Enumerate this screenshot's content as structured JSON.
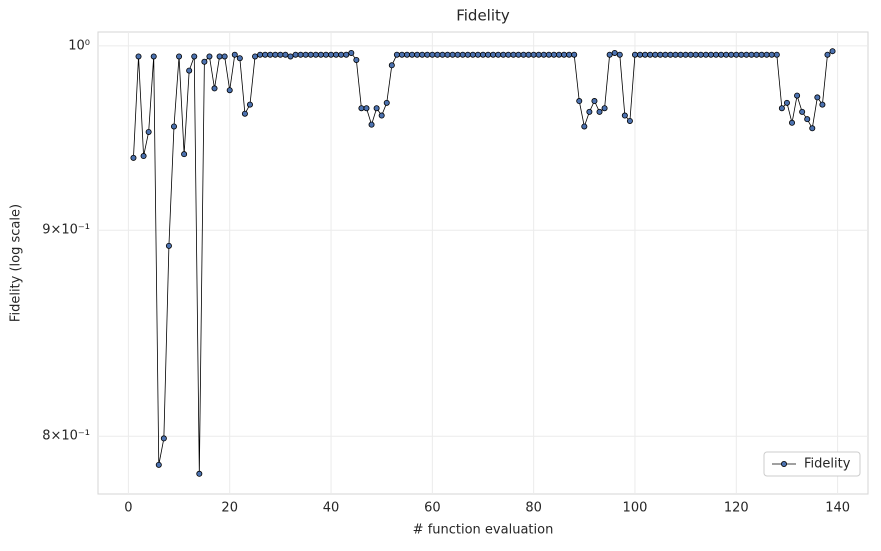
{
  "chart_data": {
    "type": "line",
    "title": "Fidelity",
    "x_label": "# function evaluation",
    "y_label": "Fidelity (log scale)",
    "log_y": true,
    "grid": true,
    "legend_position": "lower right",
    "xlim": [
      -6,
      146
    ],
    "xticks": [
      0,
      20,
      40,
      60,
      80,
      100,
      120,
      140
    ],
    "ylim": [
      0.774,
      1.008
    ],
    "yticks": [
      {
        "value": 0.8,
        "label": "8×10⁻¹"
      },
      {
        "value": 0.9,
        "label": "9×10⁻¹"
      },
      {
        "value": 1,
        "label": "10⁰"
      }
    ],
    "x": [
      1,
      2,
      3,
      4,
      5,
      6,
      7,
      8,
      9,
      10,
      11,
      12,
      13,
      14,
      15,
      16,
      17,
      18,
      19,
      20,
      21,
      22,
      23,
      24,
      25,
      26,
      27,
      28,
      29,
      30,
      31,
      32,
      33,
      34,
      35,
      36,
      37,
      38,
      39,
      40,
      41,
      42,
      43,
      44,
      45,
      46,
      47,
      48,
      49,
      50,
      51,
      52,
      53,
      54,
      55,
      56,
      57,
      58,
      59,
      60,
      61,
      62,
      63,
      64,
      65,
      66,
      67,
      68,
      69,
      70,
      71,
      72,
      73,
      74,
      75,
      76,
      77,
      78,
      79,
      80,
      81,
      82,
      83,
      84,
      85,
      86,
      87,
      88,
      89,
      90,
      91,
      92,
      93,
      94,
      95,
      96,
      97,
      98,
      99,
      100,
      101,
      102,
      103,
      104,
      105,
      106,
      107,
      108,
      109,
      110,
      111,
      112,
      113,
      114,
      115,
      116,
      117,
      118,
      119,
      120,
      121,
      122,
      123,
      124,
      125,
      126,
      127,
      128,
      129,
      130,
      131,
      132,
      133,
      134,
      135,
      136,
      137,
      138,
      139
    ],
    "series": [
      {
        "name": "Fidelity",
        "color": "#4c72b0",
        "values": [
          0.938,
          0.994,
          0.939,
          0.952,
          0.994,
          0.787,
          0.799,
          0.892,
          0.955,
          0.994,
          0.94,
          0.986,
          0.994,
          0.783,
          0.991,
          0.994,
          0.976,
          0.994,
          0.994,
          0.975,
          0.995,
          0.993,
          0.962,
          0.967,
          0.994,
          0.995,
          0.995,
          0.995,
          0.995,
          0.995,
          0.995,
          0.994,
          0.995,
          0.995,
          0.995,
          0.995,
          0.995,
          0.995,
          0.995,
          0.995,
          0.995,
          0.995,
          0.995,
          0.996,
          0.992,
          0.965,
          0.965,
          0.956,
          0.965,
          0.961,
          0.968,
          0.989,
          0.995,
          0.995,
          0.995,
          0.995,
          0.995,
          0.995,
          0.995,
          0.995,
          0.995,
          0.995,
          0.995,
          0.995,
          0.995,
          0.995,
          0.995,
          0.995,
          0.995,
          0.995,
          0.995,
          0.995,
          0.995,
          0.995,
          0.995,
          0.995,
          0.995,
          0.995,
          0.995,
          0.995,
          0.995,
          0.995,
          0.995,
          0.995,
          0.995,
          0.995,
          0.995,
          0.995,
          0.969,
          0.955,
          0.963,
          0.969,
          0.963,
          0.965,
          0.995,
          0.996,
          0.995,
          0.961,
          0.958,
          0.995,
          0.995,
          0.995,
          0.995,
          0.995,
          0.995,
          0.995,
          0.995,
          0.995,
          0.995,
          0.995,
          0.995,
          0.995,
          0.995,
          0.995,
          0.995,
          0.995,
          0.995,
          0.995,
          0.995,
          0.995,
          0.995,
          0.995,
          0.995,
          0.995,
          0.995,
          0.995,
          0.995,
          0.995,
          0.965,
          0.968,
          0.957,
          0.972,
          0.963,
          0.959,
          0.954,
          0.971,
          0.967,
          0.995,
          0.997
        ]
      }
    ]
  }
}
